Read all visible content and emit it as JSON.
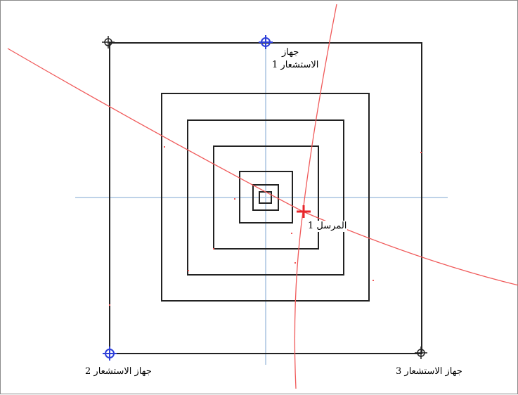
{
  "diagram": {
    "labels": {
      "sensor1_line1": "جهاز",
      "sensor1_line2": "الاستشعار 1",
      "sensor2": "جهاز الاستشعار 2",
      "sensor3": "جهاز الاستشعار 3",
      "transmitter1": "المرسل 1"
    },
    "colors": {
      "frame": "#222222",
      "grid_axis": "#a9c3e0",
      "hyperbola": "#f05a5a",
      "sensor_blue": "#2d3fd9",
      "sensor_black": "#222222",
      "transmitter": "#e8262b"
    },
    "markers": {
      "sensor1": "blue-crosshair",
      "sensor2": "blue-crosshair",
      "sensor3": "black-crosshair",
      "corner_top_left": "black-crosshair",
      "transmitter1": "red-plus"
    }
  }
}
